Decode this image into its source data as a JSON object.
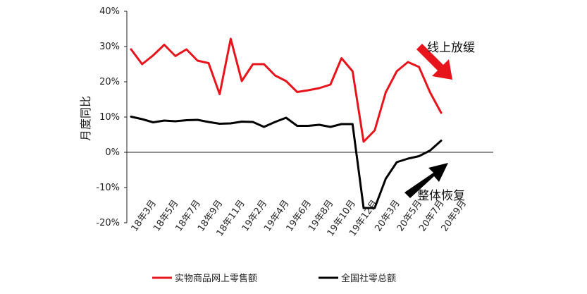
{
  "chart_data": {
    "type": "line",
    "ylabel": "月度同比",
    "ylim": [
      -20,
      40
    ],
    "yticks": [
      "40%",
      "30%",
      "20%",
      "10%",
      "0%",
      "-10%",
      "-20%"
    ],
    "ytick_values": [
      40,
      30,
      20,
      10,
      0,
      -10,
      -20
    ],
    "x_tick_labels": [
      "18年3月",
      "18年5月",
      "18年7月",
      "18年9月",
      "18年11月",
      "19年2月",
      "19年4月",
      "19年6月",
      "19年8月",
      "19年10月",
      "19年12月",
      "20年3月",
      "20年5月",
      "20年7月",
      "20年9月"
    ],
    "x_tick_indices": [
      0,
      2,
      4,
      6,
      8,
      10,
      12,
      14,
      16,
      18,
      20,
      22,
      24,
      26,
      28
    ],
    "series": [
      {
        "name": "实物商品网上零售额",
        "color": "#e8141b",
        "values": [
          29.2,
          25.0,
          27.5,
          30.5,
          27.3,
          29.2,
          26.0,
          25.3,
          16.5,
          32.2,
          20.2,
          25.0,
          25.0,
          21.8,
          20.2,
          17.1,
          17.6,
          18.2,
          19.2,
          26.7,
          23.0,
          3.0,
          6.2,
          17.0,
          23.0,
          25.6,
          24.2,
          17.0,
          11.2
        ]
      },
      {
        "name": "全国社零总额",
        "color": "#000000",
        "values": [
          10.1,
          9.4,
          8.5,
          9.0,
          8.8,
          9.1,
          9.2,
          8.6,
          8.1,
          8.2,
          8.7,
          8.6,
          7.2,
          8.6,
          9.8,
          7.5,
          7.5,
          7.8,
          7.2,
          8.0,
          8.0,
          -15.8,
          -15.8,
          -7.5,
          -2.8,
          -1.8,
          -1.1,
          0.5,
          3.3
        ]
      }
    ],
    "annotations": [
      {
        "text": "线上放缓",
        "arrow": "down-right",
        "color": "#e8141b"
      },
      {
        "text": "整体恢复",
        "arrow": "up-right",
        "color": "#000000"
      }
    ],
    "legend_position": "bottom",
    "grid": false
  }
}
